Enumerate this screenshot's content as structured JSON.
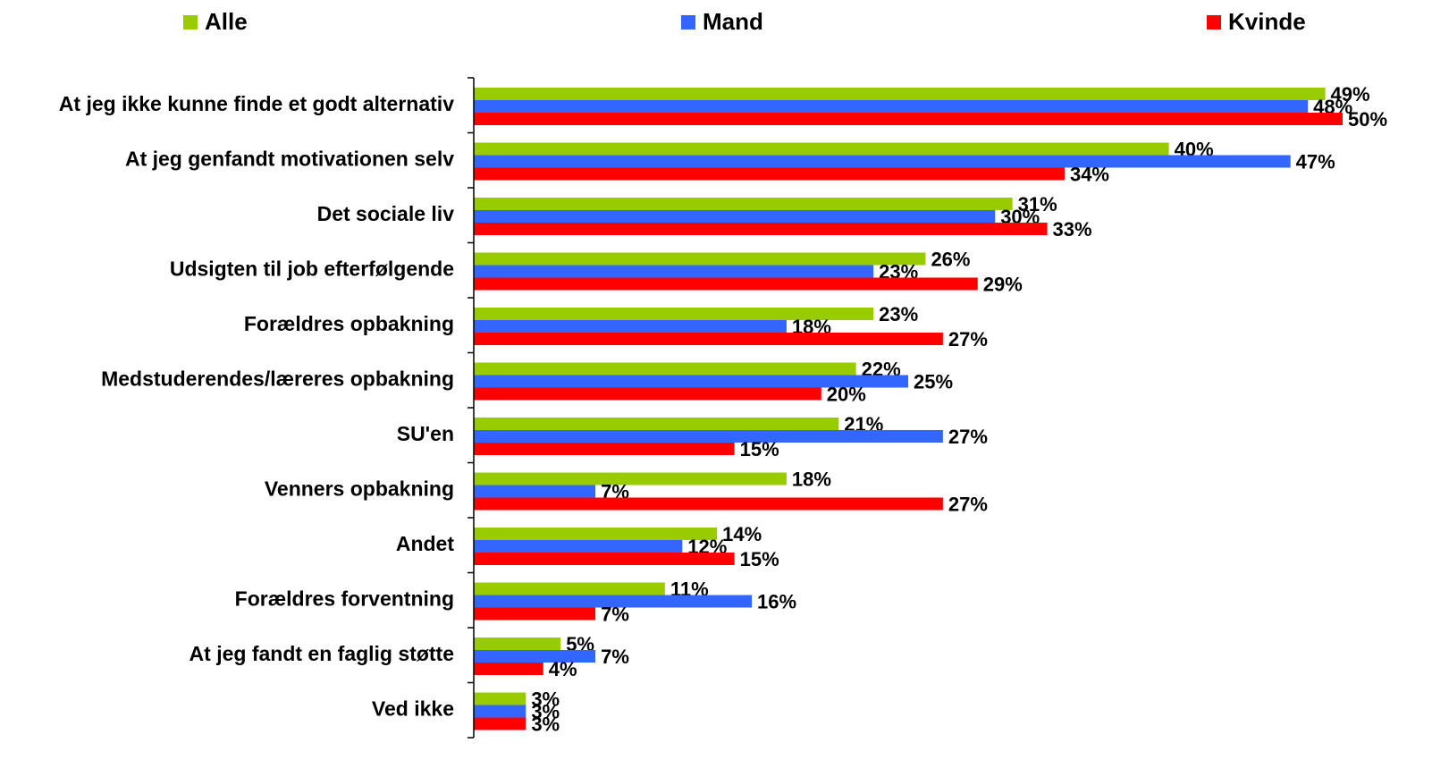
{
  "chart_data": {
    "type": "barh",
    "categories": [
      "At jeg ikke kunne finde et godt alternativ",
      "At jeg genfandt motivationen selv",
      "Det sociale liv",
      "Udsigten til job efterfølgende",
      "Forældres opbakning",
      "Medstuderendes/læreres opbakning",
      "SU'en",
      "Venners opbakning",
      "Andet",
      "Forældres forventning",
      "At jeg fandt en faglig støtte",
      "Ved ikke"
    ],
    "series": [
      {
        "name": "Alle",
        "color": "#99cc00",
        "values": [
          49,
          40,
          31,
          26,
          23,
          22,
          21,
          18,
          14,
          11,
          5,
          3
        ],
        "value_labels": [
          "49%",
          "40%",
          "31%",
          "26%",
          "23%",
          "22%",
          "21%",
          "18%",
          "14%",
          "11%",
          "5%",
          "3%"
        ]
      },
      {
        "name": "Mand",
        "color": "#3366ff",
        "values": [
          48,
          47,
          30,
          23,
          18,
          25,
          27,
          7,
          12,
          16,
          7,
          3
        ],
        "value_labels": [
          "48%",
          "47%",
          "30%",
          "23%",
          "18%",
          "25%",
          "27%",
          "7%",
          "12%",
          "16%",
          "7%",
          "3%"
        ]
      },
      {
        "name": "Kvinde",
        "color": "#ff0000",
        "values": [
          50,
          34,
          33,
          29,
          27,
          20,
          15,
          27,
          15,
          7,
          4,
          3
        ],
        "value_labels": [
          "50%",
          "34%",
          "33%",
          "29%",
          "27%",
          "20%",
          "15%",
          "27%",
          "15%",
          "7%",
          "4%",
          "3%"
        ]
      }
    ],
    "xlim": [
      0,
      50
    ],
    "legend": "top"
  }
}
